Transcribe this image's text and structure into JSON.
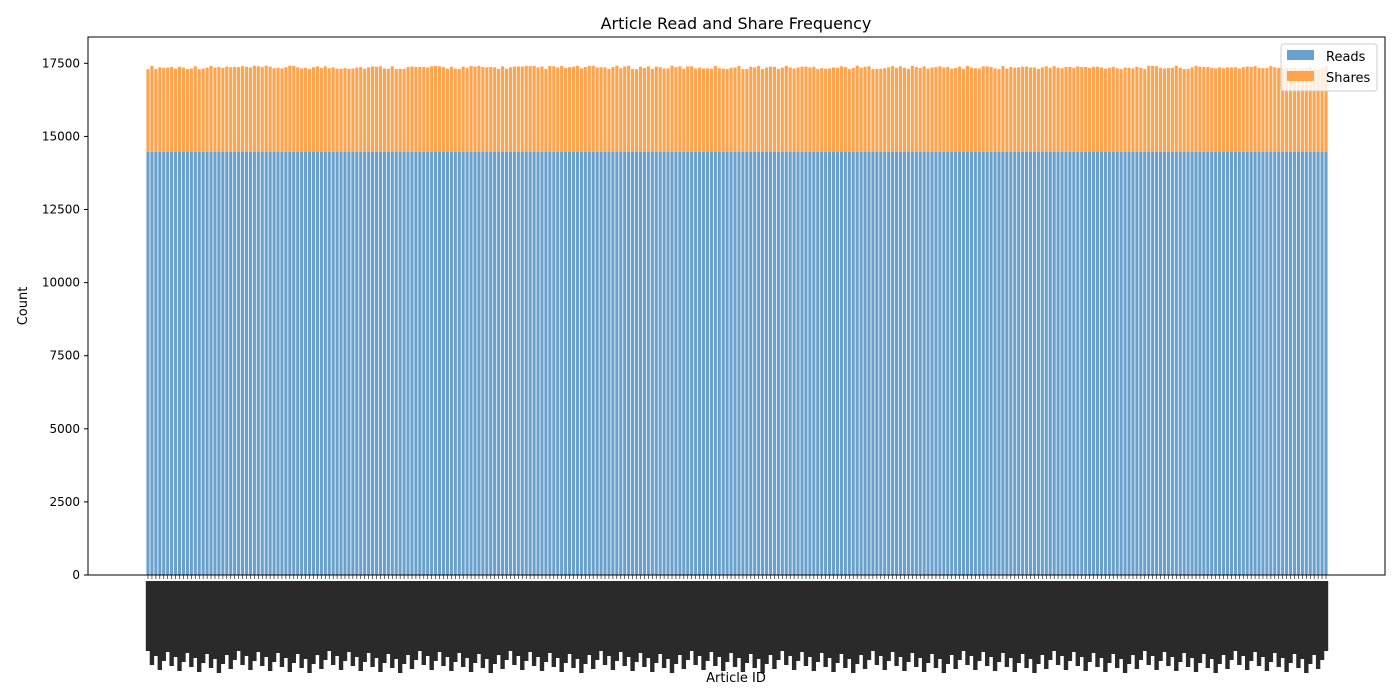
{
  "chart_data": {
    "type": "bar",
    "stacked": true,
    "title": "Article Read and Share Frequency",
    "xlabel": "Article ID",
    "ylabel": "Count",
    "ylim": [
      0,
      18400
    ],
    "yticks": [
      0,
      2500,
      5000,
      7500,
      10000,
      12500,
      15000,
      17500
    ],
    "ytick_labels": [
      "0",
      "2500",
      "5000",
      "7500",
      "10000",
      "12500",
      "15000",
      "17500"
    ],
    "n_bars": 300,
    "x_tick_label_note": "x-axis tick labels are dense, rotated and overlapping — individual article IDs are not legible",
    "series": [
      {
        "name": "Reads",
        "color": "#6aa1cc",
        "constant_value": 14480
      },
      {
        "name": "Shares",
        "color": "#ffa34d",
        "value_range_observed": [
          2780,
          3030
        ]
      }
    ],
    "legend": {
      "position": "top-right",
      "entries": [
        "Reads",
        "Shares"
      ]
    },
    "grid": false
  }
}
